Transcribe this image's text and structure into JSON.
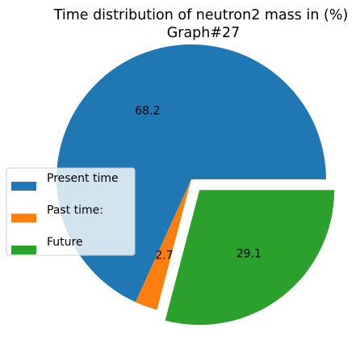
{
  "chart_data": {
    "type": "pie",
    "title": "Time distribution of neutron2 mass in (%)",
    "subtitle": "Graph#27",
    "slices": [
      {
        "label": "Present time",
        "value": 68.2,
        "value_label": "68.2",
        "color": "#1f77b4",
        "exploded": false
      },
      {
        "label": "Past time:",
        "value": 2.7,
        "value_label": "2.7",
        "color": "#ff7f0e",
        "exploded": false
      },
      {
        "label": "Future",
        "value": 29.1,
        "value_label": "29.1",
        "color": "#2ca02c",
        "exploded": true
      }
    ],
    "start_angle_deg": 0,
    "direction": "counterclockwise",
    "legend_position": "center-left"
  }
}
